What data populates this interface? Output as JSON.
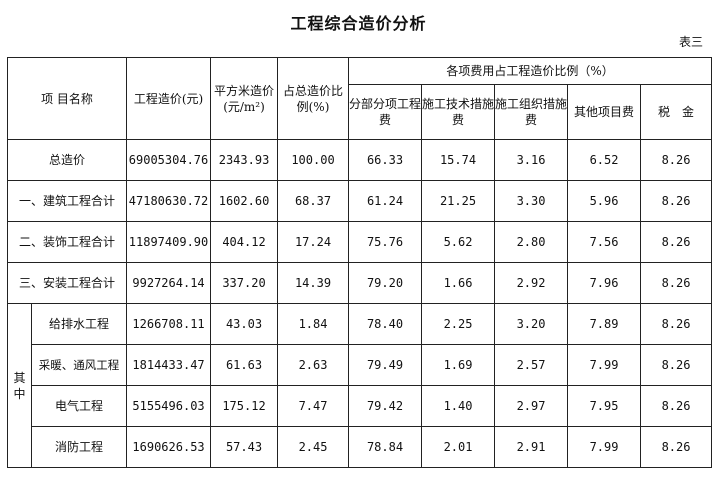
{
  "title": "工程综合造价分析",
  "table_no": "表三",
  "header": {
    "name": "项 目名称",
    "cost": "工程造价(元)",
    "unit_cost": "平方米造价(元/m²)",
    "ratio": "占总造价比例(%)",
    "group": "各项费用占工程造价比例（%）",
    "sub": [
      "分部分项工程费",
      "施工技术措施费",
      "施工组织措施费",
      "其他项目费",
      "税　金"
    ]
  },
  "side_label": "其中",
  "rows": [
    {
      "name": "总造价",
      "cost": "69005304.76",
      "unit": "2343.93",
      "ratio": "100.00",
      "p": [
        "66.33",
        "15.74",
        "3.16",
        "6.52",
        "8.26"
      ]
    },
    {
      "name": "一、建筑工程合计",
      "cost": "47180630.72",
      "unit": "1602.60",
      "ratio": "68.37",
      "p": [
        "61.24",
        "21.25",
        "3.30",
        "5.96",
        "8.26"
      ]
    },
    {
      "name": "二、装饰工程合计",
      "cost": "11897409.90",
      "unit": "404.12",
      "ratio": "17.24",
      "p": [
        "75.76",
        "5.62",
        "2.80",
        "7.56",
        "8.26"
      ]
    },
    {
      "name": "三、安装工程合计",
      "cost": "9927264.14",
      "unit": "337.20",
      "ratio": "14.39",
      "p": [
        "79.20",
        "1.66",
        "2.92",
        "7.96",
        "8.26"
      ]
    },
    {
      "name": "给排水工程",
      "cost": "1266708.11",
      "unit": "43.03",
      "ratio": "1.84",
      "p": [
        "78.40",
        "2.25",
        "3.20",
        "7.89",
        "8.26"
      ]
    },
    {
      "name": "采暖、通风工程",
      "cost": "1814433.47",
      "unit": "61.63",
      "ratio": "2.63",
      "p": [
        "79.49",
        "1.69",
        "2.57",
        "7.99",
        "8.26"
      ]
    },
    {
      "name": "电气工程",
      "cost": "5155496.03",
      "unit": "175.12",
      "ratio": "7.47",
      "p": [
        "79.42",
        "1.40",
        "2.97",
        "7.95",
        "8.26"
      ]
    },
    {
      "name": "消防工程",
      "cost": "1690626.53",
      "unit": "57.43",
      "ratio": "2.45",
      "p": [
        "78.84",
        "2.01",
        "2.91",
        "7.99",
        "8.26"
      ]
    }
  ]
}
